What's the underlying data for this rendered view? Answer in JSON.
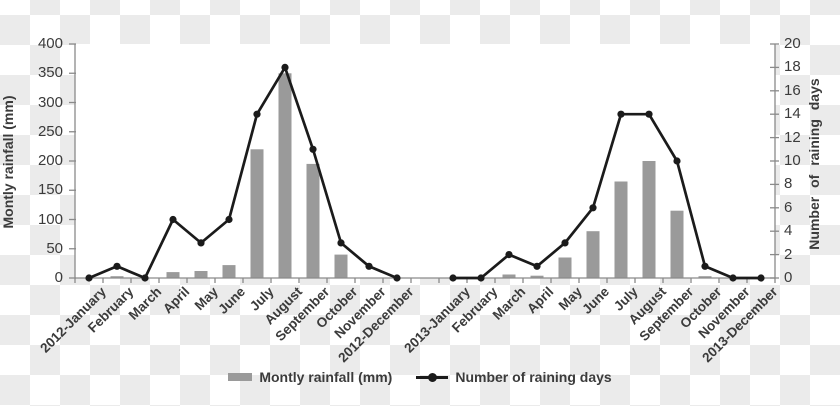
{
  "colors": {
    "bar": "#9a9a9a",
    "line": "#1b1b1b",
    "axis": "#8a8a8a",
    "text": "#3b3b3b",
    "checker_dark": "#ebebeb",
    "checker_light": "#ffffff",
    "plot_background": "#ffffff"
  },
  "chart_data": {
    "type": "bar",
    "subtype": "bar-line combo, dual y-axis, transparent background with checkerboard",
    "categories": [
      "2012-January",
      "February",
      "March",
      "April",
      "May",
      "June",
      "July",
      "August",
      "September",
      "October",
      "November",
      "2012-December",
      "2013-January",
      "February",
      "March",
      "April",
      "May",
      "June",
      "July",
      "August",
      "September",
      "October",
      "November",
      "2013-December"
    ],
    "gap_after_index": 11,
    "series": [
      {
        "name": "Montly rainfall (mm)",
        "type": "bar",
        "axis": "left",
        "color": "#9a9a9a",
        "values": [
          0,
          3,
          0,
          10,
          12,
          22,
          220,
          350,
          195,
          40,
          0,
          0,
          0,
          0,
          6,
          4,
          35,
          80,
          165,
          200,
          115,
          3,
          0,
          0
        ]
      },
      {
        "name": "Number of raining days",
        "type": "line",
        "axis": "right",
        "color": "#1b1b1b",
        "values": [
          0,
          1,
          0,
          5,
          3,
          5,
          14,
          18,
          11,
          3,
          1,
          0,
          0,
          0,
          2,
          1,
          3,
          6,
          14,
          14,
          10,
          1,
          0,
          0
        ]
      }
    ],
    "left_axis": {
      "title": "Montly rainfall (mm)",
      "min": 0,
      "max": 400,
      "step": 50
    },
    "right_axis": {
      "title": "Number  of  raining  days",
      "min": 0,
      "max": 20,
      "step": 2
    },
    "grid": false,
    "legend_position": "bottom"
  },
  "legend": {
    "items": [
      {
        "label": "Montly rainfall (mm)",
        "swatch": "bar"
      },
      {
        "label": "Number of raining days",
        "swatch": "line-with-marker"
      }
    ]
  }
}
